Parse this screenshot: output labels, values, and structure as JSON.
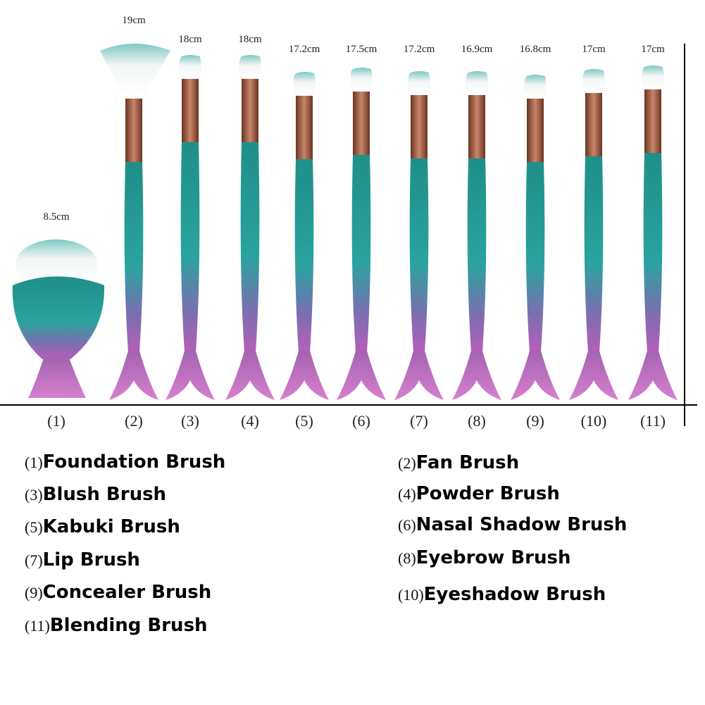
{
  "brushes": [
    {
      "length": "8.5cm",
      "number": "(1)"
    },
    {
      "length": "19cm",
      "number": "(2)"
    },
    {
      "length": "18cm",
      "number": "(3)"
    },
    {
      "length": "18cm",
      "number": "(4)"
    },
    {
      "length": "17.2cm",
      "number": "(5)"
    },
    {
      "length": "17.5cm",
      "number": "(6)"
    },
    {
      "length": "17.2cm",
      "number": "(7)"
    },
    {
      "length": "16.9cm",
      "number": "(8)"
    },
    {
      "length": "16.8cm",
      "number": "(9)"
    },
    {
      "length": "17cm",
      "number": "(10)"
    },
    {
      "length": "17cm",
      "number": "(11)"
    }
  ],
  "legend": [
    {
      "number": "(1)",
      "name": "Foundation Brush"
    },
    {
      "number": "(2)",
      "name": "Fan Brush"
    },
    {
      "number": "(3)",
      "name": "Blush Brush"
    },
    {
      "number": "(4)",
      "name": "Powder Brush"
    },
    {
      "number": "(5)",
      "name": "Kabuki Brush"
    },
    {
      "number": "(6)",
      "name": "Nasal Shadow Brush"
    },
    {
      "number": "(7)",
      "name": "Lip Brush"
    },
    {
      "number": "(8)",
      "name": "Eyebrow Brush"
    },
    {
      "number": "(9)",
      "name": "Concealer Brush"
    },
    {
      "number": "(10)",
      "name": "Eyeshadow Brush"
    },
    {
      "number": "(11)",
      "name": "Blending Brush"
    }
  ]
}
